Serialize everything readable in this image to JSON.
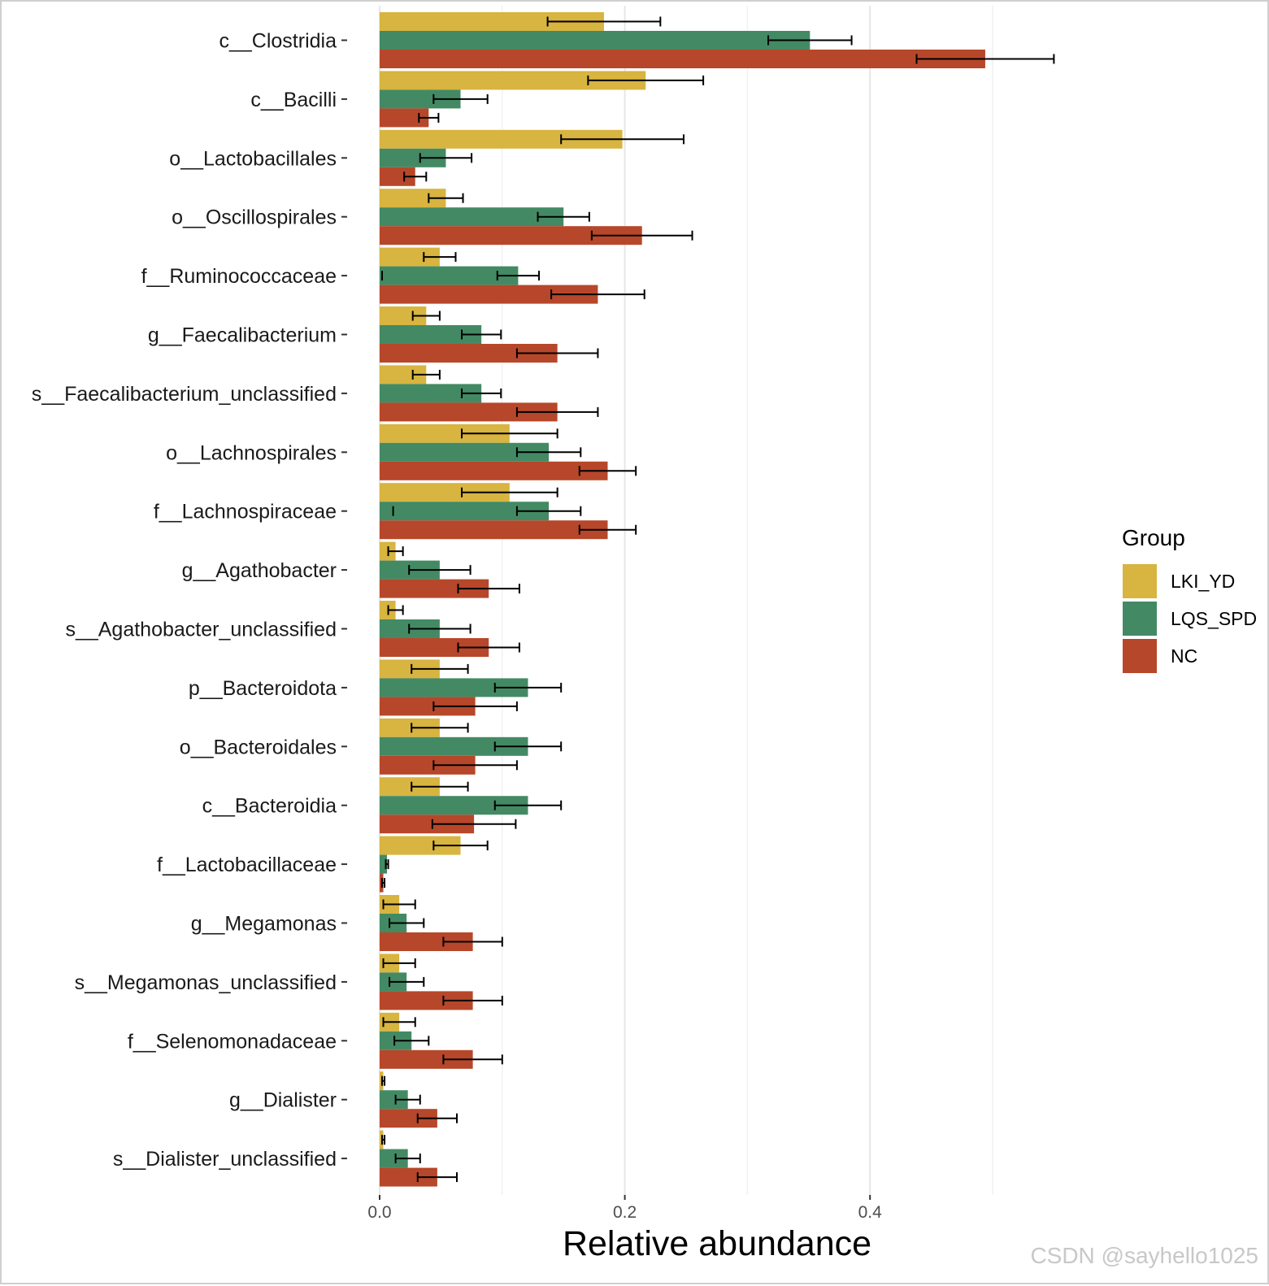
{
  "chart_data": {
    "type": "bar",
    "orientation": "horizontal",
    "xlabel": "Relative abundance",
    "ylabel": "",
    "xlim": [
      0,
      0.55
    ],
    "x_ticks": [
      {
        "value": 0.0,
        "label": "0.0"
      },
      {
        "value": 0.2,
        "label": "0.2"
      },
      {
        "value": 0.4,
        "label": "0.4"
      }
    ],
    "x_minor_gridlines": [
      0.1,
      0.3,
      0.5
    ],
    "grid": true,
    "legend_position": "right",
    "legend_title": "Group",
    "categories": [
      "c__Clostridia",
      "c__Bacilli",
      "o__Lactobacillales",
      "o__Oscillospirales",
      "f__Ruminococcaceae",
      "g__Faecalibacterium",
      "s__Faecalibacterium_unclassified",
      "o__Lachnospirales",
      "f__Lachnospiraceae",
      "g__Agathobacter",
      "s__Agathobacter_unclassified",
      "p__Bacteroidota",
      "o__Bacteroidales",
      "c__Bacteroidia",
      "f__Lactobacillaceae",
      "g__Megamonas",
      "s__Megamonas_unclassified",
      "f__Selenomonadaceae",
      "g__Dialister",
      "s__Dialister_unclassified"
    ],
    "series": [
      {
        "name": "LKI_YD",
        "color": "#D8B440",
        "values": [
          0.183,
          0.217,
          0.198,
          0.054,
          0.049,
          0.038,
          0.038,
          0.106,
          0.106,
          0.013,
          0.013,
          0.049,
          0.049,
          0.049,
          0.066,
          0.016,
          0.016,
          0.016,
          0.003,
          0.003
        ],
        "errors": [
          0.046,
          0.047,
          0.05,
          0.014,
          0.013,
          0.011,
          0.011,
          0.039,
          0.039,
          0.006,
          0.006,
          0.023,
          0.023,
          0.023,
          0.022,
          0.013,
          0.013,
          0.013,
          0.001,
          0.001
        ]
      },
      {
        "name": "LQS_SPD",
        "color": "#438A64",
        "values": [
          0.351,
          0.066,
          0.054,
          0.15,
          0.113,
          0.083,
          0.083,
          0.138,
          0.138,
          0.049,
          0.049,
          0.121,
          0.121,
          0.121,
          0.006,
          0.022,
          0.022,
          0.026,
          0.023,
          0.023
        ],
        "errors": [
          0.034,
          0.022,
          0.021,
          0.021,
          0.017,
          0.016,
          0.016,
          0.026,
          0.026,
          0.025,
          0.025,
          0.027,
          0.027,
          0.027,
          0.001,
          0.014,
          0.014,
          0.014,
          0.01,
          0.01
        ],
        "extra_marks": [
          {
            "category": "f__Ruminococcaceae",
            "value": 0.002
          },
          {
            "category": "f__Lachnospiraceae",
            "value": 0.011
          }
        ]
      },
      {
        "name": "NC",
        "color": "#B7472A",
        "values": [
          0.494,
          0.04,
          0.029,
          0.214,
          0.178,
          0.145,
          0.145,
          0.186,
          0.186,
          0.089,
          0.089,
          0.078,
          0.078,
          0.077,
          0.003,
          0.076,
          0.076,
          0.076,
          0.047,
          0.047
        ],
        "errors": [
          0.056,
          0.008,
          0.009,
          0.041,
          0.038,
          0.033,
          0.033,
          0.023,
          0.023,
          0.025,
          0.025,
          0.034,
          0.034,
          0.034,
          0.001,
          0.024,
          0.024,
          0.024,
          0.016,
          0.016
        ]
      }
    ]
  },
  "watermark": "CSDN @sayhello1025"
}
